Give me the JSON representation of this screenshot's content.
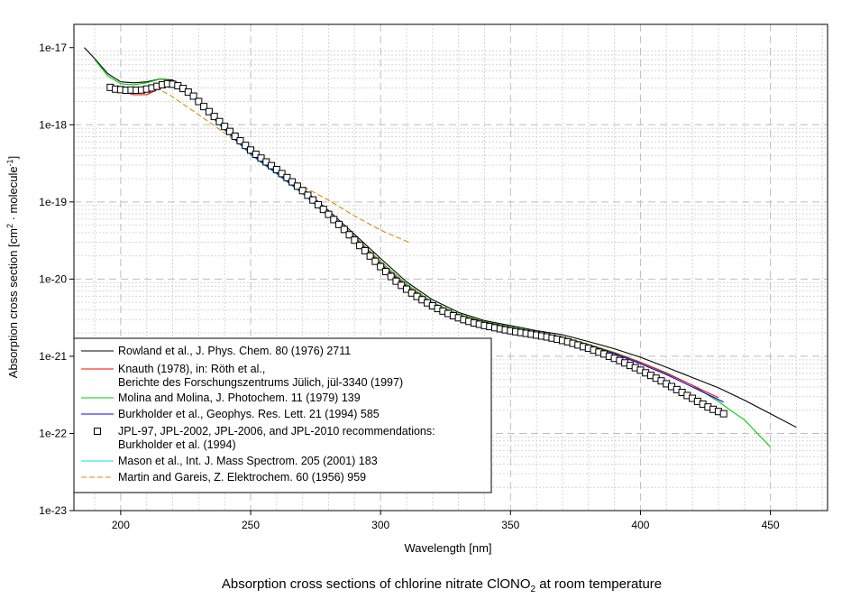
{
  "chart_data": {
    "type": "line",
    "caption_main": "Absorption cross sections of chlorine nitrate ClONO",
    "caption_sub": "2",
    "caption_tail": " at room temperature",
    "xlabel": "Wavelength [nm]",
    "ylabel_parts": [
      "Absorption cross section [cm",
      "2",
      " · molecule",
      "-1",
      "]"
    ],
    "log_y": true,
    "xlim": [
      182,
      472
    ],
    "ylim": [
      1e-23,
      2e-17
    ],
    "grid": true,
    "legend_position": "bottom-left",
    "x_ticks": [
      200,
      250,
      300,
      350,
      400,
      450
    ],
    "x_tick_labels": [
      "200",
      "250",
      "300",
      "350",
      "400",
      "450"
    ],
    "y_ticks": [
      1e-17,
      1e-18,
      1e-19,
      1e-20,
      1e-21,
      1e-22,
      1e-23
    ],
    "y_tick_labels": [
      "1e-17",
      "1e-18",
      "1e-19",
      "1e-20",
      "1e-21",
      "1e-22",
      "1e-23"
    ],
    "series": [
      {
        "name": "Rowland et al., J. Phys. Chem. 80 (1976) 2711",
        "color": "#000000",
        "style": "solid",
        "x": [
          186,
          190,
          195,
          200,
          205,
          210,
          215,
          220,
          225,
          230,
          240,
          250,
          260,
          270,
          280,
          290,
          300,
          310,
          320,
          330,
          340,
          350,
          360,
          370,
          380,
          390,
          400,
          410,
          420,
          430,
          440,
          450,
          460
        ],
        "y": [
          1e-17,
          7.2e-18,
          4.6e-18,
          3.6e-18,
          3.5e-18,
          3.6e-18,
          3.9e-18,
          3.8e-18,
          3e-18,
          2.05e-18,
          9.3e-19,
          4.5e-19,
          2.6e-19,
          1.5e-19,
          7.7e-20,
          3.8e-20,
          1.85e-20,
          9.2e-21,
          5.4e-21,
          3.7e-21,
          2.9e-21,
          2.5e-21,
          2.15e-21,
          1.9e-21,
          1.55e-21,
          1.25e-21,
          9.7e-22,
          7.2e-22,
          5.3e-22,
          3.9e-22,
          2.7e-22,
          1.8e-22,
          1.2e-22
        ]
      },
      {
        "name": "Knauth (1978), in: Röth et al.,",
        "name_line2": "Berichte des Forschungszentrums Jülich, jül-3340 (1997)",
        "color": "#ff0000",
        "style": "solid",
        "x": [
          196,
          200,
          205,
          210,
          215,
          220,
          225,
          230,
          240,
          250,
          260,
          270,
          280,
          290,
          300,
          310,
          320,
          330,
          340,
          350,
          360,
          370,
          380,
          390,
          400,
          410,
          420,
          430
        ],
        "y": [
          3e-18,
          2.75e-18,
          2.45e-18,
          2.45e-18,
          2.95e-18,
          3.5e-18,
          2.8e-18,
          1.95e-18,
          8.8e-19,
          4.3e-19,
          2.45e-19,
          1.4e-19,
          7.1e-20,
          3.5e-20,
          1.6e-20,
          8.2e-21,
          4.8e-21,
          3.4e-21,
          2.75e-21,
          2.35e-21,
          2e-21,
          1.75e-21,
          1.4e-21,
          1.1e-21,
          8.3e-22,
          6e-22,
          4.2e-22,
          2.9e-22
        ]
      },
      {
        "name": "Molina and Molina, J. Photochem. 11 (1979) 139",
        "color": "#00cc00",
        "style": "solid",
        "x": [
          190,
          195,
          200,
          205,
          210,
          215,
          220,
          225,
          230,
          240,
          250,
          260,
          270,
          280,
          290,
          300,
          310,
          320,
          330,
          340,
          350,
          360,
          370,
          380,
          390,
          400,
          410,
          420,
          430,
          435,
          440,
          445,
          450
        ],
        "y": [
          7e-18,
          4.3e-18,
          3.4e-18,
          3.3e-18,
          3.5e-18,
          3.9e-18,
          3.7e-18,
          2.8e-18,
          1.95e-18,
          8.9e-19,
          4.35e-19,
          2.5e-19,
          1.42e-19,
          7.2e-20,
          3.55e-20,
          1.7e-20,
          8.6e-21,
          5e-21,
          3.5e-21,
          2.8e-21,
          2.4e-21,
          2.05e-21,
          1.78e-21,
          1.43e-21,
          1.12e-21,
          8.4e-22,
          6.1e-22,
          4.2e-22,
          2.6e-22,
          1.95e-22,
          1.5e-22,
          1e-22,
          6.7e-23
        ]
      },
      {
        "name": "Burkholder et al., Geophys. Res. Lett. 21 (1994) 585",
        "color": "#0000ff",
        "style": "solid",
        "x": [
          196,
          200,
          205,
          210,
          215,
          220,
          225,
          230,
          240,
          250,
          260,
          270,
          280,
          290,
          300,
          310,
          320,
          330,
          340,
          350,
          360,
          370,
          380,
          390,
          400,
          410,
          420,
          432
        ],
        "y": [
          3.05e-18,
          2.85e-18,
          2.8e-18,
          2.95e-18,
          3.3e-18,
          3.4e-18,
          2.8e-18,
          1.95e-18,
          8.7e-19,
          4.2e-19,
          2.35e-19,
          1.3e-19,
          6.6e-20,
          3.25e-20,
          1.55e-20,
          7.9e-21,
          4.6e-21,
          3.25e-21,
          2.7e-21,
          2.3e-21,
          2e-21,
          1.72e-21,
          1.38e-21,
          1.08e-21,
          8e-22,
          5.8e-22,
          4e-22,
          2.55e-22
        ]
      },
      {
        "name": "JPL-97, JPL-2002, JPL-2006, and JPL-2010 recommendations:",
        "name_line2": "Burkholder et al. (1994)",
        "color": "#000000",
        "style": "markers",
        "x": [
          196,
          198,
          200,
          202,
          204,
          206,
          208,
          210,
          212,
          214,
          216,
          218,
          220,
          222,
          224,
          226,
          228,
          230,
          232,
          234,
          236,
          238,
          240,
          242,
          244,
          246,
          248,
          250,
          252,
          254,
          256,
          258,
          260,
          262,
          264,
          266,
          268,
          270,
          272,
          274,
          276,
          278,
          280,
          282,
          284,
          286,
          288,
          290,
          292,
          294,
          296,
          298,
          300,
          302,
          304,
          306,
          308,
          310,
          312,
          314,
          316,
          318,
          320,
          322,
          324,
          326,
          328,
          330,
          332,
          334,
          336,
          338,
          340,
          342,
          344,
          346,
          348,
          350,
          352,
          354,
          356,
          358,
          360,
          362,
          364,
          366,
          368,
          370,
          372,
          374,
          376,
          378,
          380,
          382,
          384,
          386,
          388,
          390,
          392,
          394,
          396,
          398,
          400,
          402,
          404,
          406,
          408,
          410,
          412,
          414,
          416,
          418,
          420,
          422,
          424,
          426,
          428,
          430,
          432
        ],
        "y": [
          3.05e-18,
          2.9e-18,
          2.85e-18,
          2.8e-18,
          2.82e-18,
          2.8e-18,
          2.82e-18,
          2.9e-18,
          3e-18,
          3.15e-18,
          3.3e-18,
          3.4e-18,
          3.35e-18,
          3.2e-18,
          2.95e-18,
          2.65e-18,
          2.35e-18,
          2e-18,
          1.72e-18,
          1.48e-18,
          1.28e-18,
          1.1e-18,
          9.5e-19,
          8.2e-19,
          7.1e-19,
          6.2e-19,
          5.4e-19,
          4.7e-19,
          4.15e-19,
          3.7e-19,
          3.3e-19,
          2.95e-19,
          2.62e-19,
          2.33e-19,
          2.07e-19,
          1.82e-19,
          1.6e-19,
          1.4e-19,
          1.22e-19,
          1.06e-19,
          9.2e-20,
          8e-20,
          6.9e-20,
          5.9e-20,
          5.1e-20,
          4.4e-20,
          3.75e-20,
          3.2e-20,
          2.72e-20,
          2.33e-20,
          1.99e-20,
          1.7e-20,
          1.45e-20,
          1.25e-20,
          1.08e-20,
          9.4e-21,
          8.3e-21,
          7.4e-21,
          6.6e-21,
          5.95e-21,
          5.4e-21,
          4.92e-21,
          4.5e-21,
          4.15e-21,
          3.85e-21,
          3.58e-21,
          3.35e-21,
          3.15e-21,
          2.98e-21,
          2.83e-21,
          2.7e-21,
          2.6e-21,
          2.5e-21,
          2.42e-21,
          2.34e-21,
          2.27e-21,
          2.2e-21,
          2.14e-21,
          2.08e-21,
          2.03e-21,
          1.98e-21,
          1.93e-21,
          1.88e-21,
          1.83e-21,
          1.78e-21,
          1.72e-21,
          1.66e-21,
          1.6e-21,
          1.54e-21,
          1.47e-21,
          1.4e-21,
          1.33e-21,
          1.27e-21,
          1.2e-21,
          1.13e-21,
          1.07e-21,
          1e-21,
          9.4e-22,
          8.8e-22,
          8.2e-22,
          7.6e-22,
          7.1e-22,
          6.6e-22,
          6.1e-22,
          5.65e-22,
          5.2e-22,
          4.8e-22,
          4.4e-22,
          4.05e-22,
          3.7e-22,
          3.4e-22,
          3.1e-22,
          2.85e-22,
          2.6e-22,
          2.4e-22,
          2.2e-22,
          2.05e-22,
          1.92e-22,
          1.8e-22
        ]
      },
      {
        "name": "Mason et al., Int. J. Mass Spectrom. 205 (2001) 183",
        "color": "#00e5e5",
        "style": "solid",
        "x": [
          215,
          220,
          225,
          230,
          240,
          250,
          260,
          270,
          280,
          290,
          300,
          310,
          320,
          330,
          340,
          350,
          360
        ],
        "y": [
          3.2e-18,
          3.3e-18,
          2.7e-18,
          1.9e-18,
          8.5e-19,
          4.1e-19,
          2.3e-19,
          1.28e-19,
          6.5e-20,
          3.2e-20,
          1.52e-20,
          7.8e-21,
          4.5e-21,
          3.2e-21,
          2.65e-21,
          2.25e-21,
          1.95e-21
        ]
      },
      {
        "name": "Martin and Gareis, Z. Elektrochem. 60 (1956) 959",
        "color": "#e08a00",
        "style": "dashed",
        "x": [
          210,
          215,
          220,
          225,
          230,
          240,
          250,
          260,
          270,
          280,
          290,
          300,
          311
        ],
        "y": [
          2.9e-18,
          2.85e-18,
          2.3e-18,
          1.75e-18,
          1.35e-18,
          7.8e-19,
          4.4e-19,
          2.55e-19,
          1.6e-19,
          1.05e-19,
          6.6e-20,
          4.3e-20,
          3e-20
        ]
      }
    ]
  }
}
